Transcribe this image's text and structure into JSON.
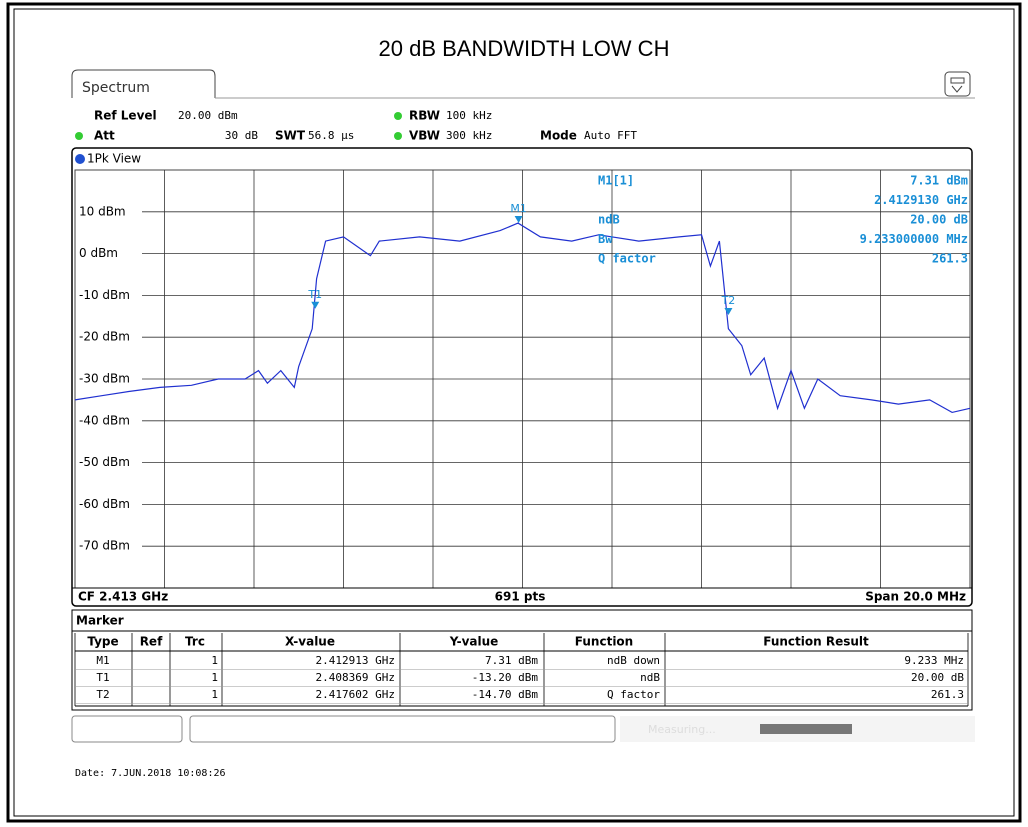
{
  "title": "20 dB BANDWIDTH LOW CH",
  "tab": "Spectrum",
  "settings": {
    "ref_level_label": "Ref Level",
    "ref_level": "20.00 dBm",
    "att_label": "Att",
    "att": "30 dB",
    "swt_label": "SWT",
    "swt": "56.8 µs",
    "rbw_label": "RBW",
    "rbw": "100 kHz",
    "vbw_label": "VBW",
    "vbw": "300 kHz",
    "mode_label": "Mode",
    "mode": "Auto FFT",
    "view": "1Pk View"
  },
  "chart_data": {
    "type": "line",
    "x": [
      2.403,
      2.4036,
      2.4042,
      2.4049,
      2.4056,
      2.4062,
      2.4068,
      2.4071,
      2.4073,
      2.4076,
      2.4079,
      2.408,
      2.4083,
      2.4084,
      2.4086,
      2.409,
      2.4096,
      2.4098,
      2.4107,
      2.4116,
      2.4125,
      2.4129,
      2.4134,
      2.4141,
      2.4147,
      2.4156,
      2.4165,
      2.417,
      2.4172,
      2.4174,
      2.4176,
      2.4179,
      2.4181,
      2.4184,
      2.4187,
      2.419,
      2.4193,
      2.4196,
      2.4201,
      2.4208,
      2.4214,
      2.4221,
      2.4226,
      2.423
    ],
    "series": [
      {
        "color": "#2030d0",
        "values": [
          -35,
          -34,
          -33,
          -32,
          -31.5,
          -30,
          -30,
          -28,
          -31,
          -28,
          -32,
          -27,
          -18,
          -6,
          3,
          4,
          -0.5,
          3,
          4,
          3,
          5.5,
          7.3,
          4,
          3,
          4.5,
          3,
          4,
          4.5,
          -3,
          3,
          -18,
          -22,
          -29,
          -25,
          -37,
          -28,
          -37,
          -30,
          -34,
          -35,
          -36,
          -35,
          -38,
          -37
        ]
      }
    ],
    "xlim": [
      2.403,
      2.423
    ],
    "ylim": [
      -80,
      20
    ],
    "yticks": [
      {
        "value": 10,
        "label": "10 dBm"
      },
      {
        "value": 0,
        "label": "0 dBm"
      },
      {
        "value": -10,
        "label": "-10 dBm"
      },
      {
        "value": -20,
        "label": "-20 dBm"
      },
      {
        "value": -30,
        "label": "-30 dBm"
      },
      {
        "value": -40,
        "label": "-40 dBm"
      },
      {
        "value": -50,
        "label": "-50 dBm"
      },
      {
        "value": -60,
        "label": "-60 dBm"
      },
      {
        "value": -70,
        "label": "-70 dBm"
      }
    ],
    "grid": true,
    "markers": [
      {
        "name": "M1",
        "x": 2.412913,
        "y": 7.31
      },
      {
        "name": "T1",
        "x": 2.408369,
        "y": -13.2
      },
      {
        "name": "T2",
        "x": 2.417602,
        "y": -14.7
      }
    ]
  },
  "marker_info": [
    [
      "M1[1]",
      "7.31 dBm"
    ],
    [
      null,
      "2.4129130 GHz"
    ],
    [
      "ndB",
      "20.00 dB"
    ],
    [
      "Bw",
      "9.233000000 MHz"
    ],
    [
      "Q factor",
      "261.3"
    ]
  ],
  "footer": {
    "cf": "CF 2.413 GHz",
    "pts": "691 pts",
    "span": "Span 20.0 MHz"
  },
  "table": {
    "title": "Marker",
    "header": [
      "Type",
      "Ref",
      "Trc",
      "X-value",
      "Y-value",
      "Function",
      "Function Result"
    ],
    "rows": [
      [
        "M1",
        null,
        "1",
        "2.412913 GHz",
        "7.31 dBm",
        "ndB down",
        "9.233 MHz"
      ],
      [
        "T1",
        null,
        "1",
        "2.408369 GHz",
        "-13.20 dBm",
        "ndB",
        "20.00 dB"
      ],
      [
        "T2",
        null,
        "1",
        "2.417602 GHz",
        "-14.70 dBm",
        "Q factor",
        "261.3"
      ]
    ]
  },
  "status": "Measuring...",
  "date": "Date: 7.JUN.2018 10:08:26"
}
